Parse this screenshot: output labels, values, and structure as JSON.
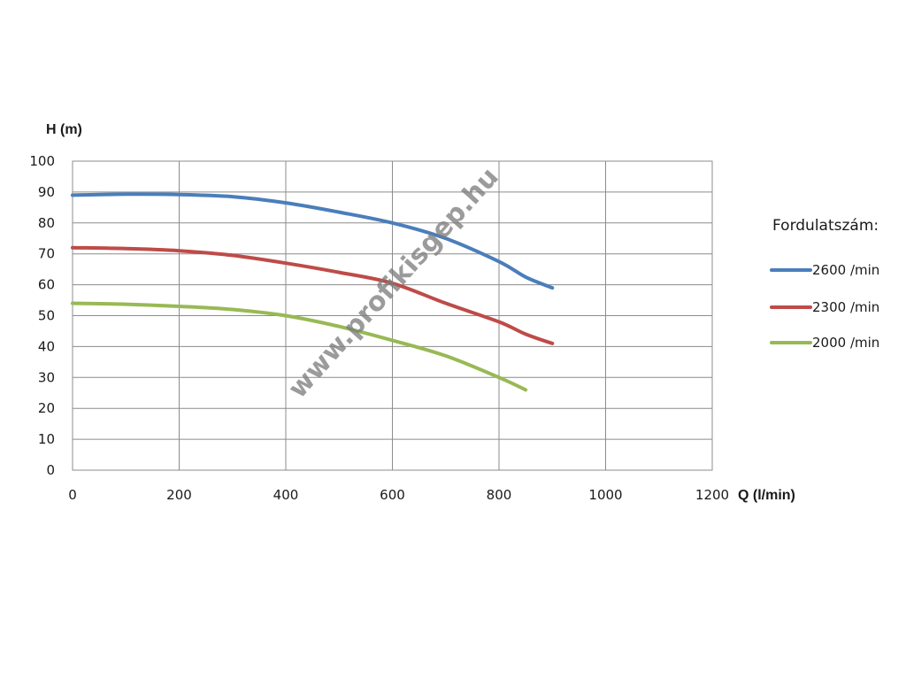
{
  "watermark": "www.profikisgep.hu",
  "chart_data": {
    "type": "line",
    "title": "",
    "xlabel": "Q (l/min)",
    "ylabel": "H (m)",
    "xlim": [
      0,
      1200
    ],
    "ylim": [
      0,
      100
    ],
    "xticks": [
      0,
      200,
      400,
      600,
      800,
      1000,
      1200
    ],
    "yticks": [
      0,
      10,
      20,
      30,
      40,
      50,
      60,
      70,
      80,
      90,
      100
    ],
    "grid": true,
    "legend_title": "Fordulatszám:",
    "legend_position": "right",
    "series": [
      {
        "name": "2600 /min",
        "color": "#4a7ebb",
        "x": [
          0,
          100,
          200,
          300,
          400,
          500,
          600,
          700,
          800,
          850,
          900
        ],
        "y": [
          89,
          89.3,
          89.2,
          88.5,
          86.5,
          83.5,
          80,
          75,
          67.5,
          62.5,
          59
        ]
      },
      {
        "name": "2300 /min",
        "color": "#be4b48",
        "x": [
          0,
          100,
          200,
          300,
          400,
          500,
          600,
          700,
          800,
          850,
          900
        ],
        "y": [
          72,
          71.7,
          71,
          69.5,
          67,
          64,
          60.5,
          54,
          48,
          44,
          41
        ]
      },
      {
        "name": "2000 /min",
        "color": "#98b954",
        "x": [
          0,
          100,
          200,
          300,
          400,
          500,
          600,
          700,
          800,
          850
        ],
        "y": [
          54,
          53.7,
          53,
          52,
          50,
          46.5,
          42,
          37,
          30,
          26
        ]
      }
    ]
  }
}
